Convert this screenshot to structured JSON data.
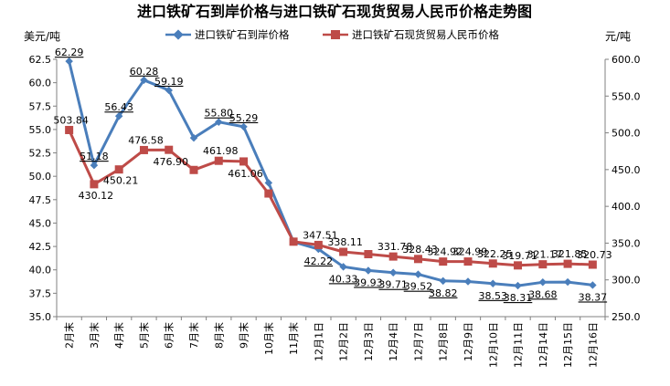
{
  "chart_data": {
    "type": "line",
    "title": "进口铁矿石到岸价格与进口铁矿石现货贸易人民币价格走势图",
    "ylabel_left": "美元/吨",
    "ylabel_right": "元/吨",
    "ylim_left": [
      35.0,
      62.5
    ],
    "ylim_right": [
      250.0,
      600.0
    ],
    "yticks_left": [
      "35.0",
      "37.5",
      "40.0",
      "42.5",
      "45.0",
      "47.5",
      "50.0",
      "52.5",
      "55.0",
      "57.5",
      "60.0",
      "62.5"
    ],
    "yticks_right": [
      "250.0",
      "300.0",
      "350.0",
      "400.0",
      "450.0",
      "500.0",
      "550.0",
      "600.0"
    ],
    "categories": [
      "2月末",
      "3月末",
      "4月末",
      "5月末",
      "6月末",
      "7月末",
      "8月末",
      "9月末",
      "10月末",
      "11月末",
      "12月1日",
      "12月2日",
      "12月3日",
      "12月4日",
      "12月7日",
      "12月8日",
      "12月9日",
      "12月10日",
      "12月11日",
      "12月14日",
      "12月15日",
      "12月16日"
    ],
    "legend_position": "top",
    "grid": false,
    "series": [
      {
        "name": "进口铁矿石到岸价格",
        "axis": "left",
        "color": "#4a7ebb",
        "marker": "diamond",
        "values": [
          62.29,
          51.18,
          56.43,
          60.28,
          59.19,
          54.1,
          55.8,
          55.29,
          49.3,
          43.0,
          42.22,
          40.33,
          39.93,
          39.71,
          39.52,
          38.82,
          38.75,
          38.53,
          38.31,
          38.68,
          38.7,
          38.37
        ],
        "labels": [
          "62.29",
          "51.18",
          "56.43",
          "60.28",
          "59.19",
          "",
          "55.80",
          "55.29",
          "",
          "",
          "42.22",
          "40.33",
          "39.93",
          "39.71",
          "39.52",
          "38.82",
          "",
          "38.53",
          "38.31",
          "38.68",
          "",
          "38.37"
        ]
      },
      {
        "name": "进口铁矿石现货贸易人民币价格",
        "axis": "right",
        "color": "#be4b48",
        "marker": "square",
        "values": [
          503.84,
          430.12,
          450.21,
          476.58,
          476.9,
          449.5,
          461.98,
          461.06,
          417.5,
          352.0,
          347.51,
          338.11,
          335.0,
          331.78,
          328.43,
          324.92,
          324.99,
          322.25,
          319.71,
          321.17,
          321.85,
          320.73
        ],
        "labels": [
          "503.84",
          "430.12",
          "450.21",
          "476.58",
          "476.90",
          "",
          "461.98",
          "461.06",
          "",
          "",
          "347.51",
          "338.11",
          "",
          "331.78",
          "328.43",
          "324.92",
          "324.99",
          "322.25",
          "319.71",
          "321.17",
          "321.85",
          "320.73"
        ]
      }
    ]
  },
  "colors": {
    "left_series": "#4a7ebb",
    "right_series": "#be4b48",
    "axis": "#808080"
  }
}
